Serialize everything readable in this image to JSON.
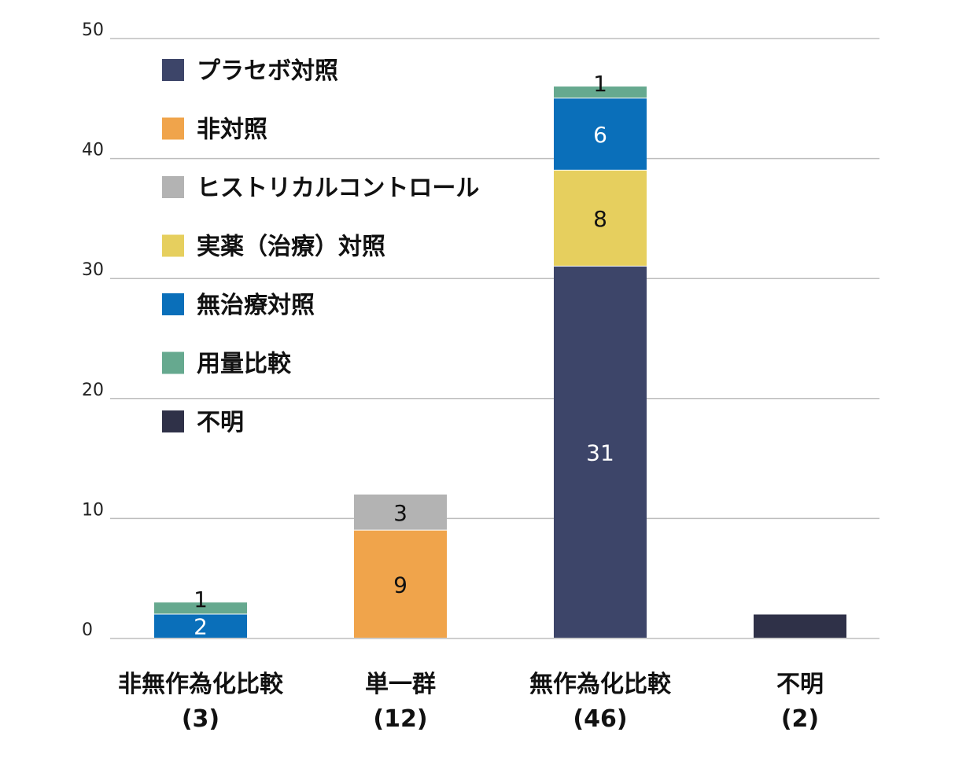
{
  "chart_data": {
    "type": "bar",
    "stacked": true,
    "categories": [
      "非無作為化比較",
      "単一群",
      "無作為化比較",
      "不明"
    ],
    "category_counts": [
      "(3)",
      "(12)",
      "(46)",
      "(2)"
    ],
    "series": [
      {
        "name": "プラセボ対照",
        "color": "#3d4569",
        "values": [
          0,
          0,
          31,
          0
        ],
        "labels": [
          "",
          "",
          "31",
          ""
        ],
        "label_color": "#ffffff"
      },
      {
        "name": "非対照",
        "color": "#f0a44b",
        "values": [
          0,
          9,
          0,
          0
        ],
        "labels": [
          "",
          "9",
          "",
          ""
        ],
        "label_color": "#111111"
      },
      {
        "name": "ヒストリカルコントロール",
        "color": "#b3b3b3",
        "values": [
          0,
          3,
          0,
          0
        ],
        "labels": [
          "",
          "3",
          "",
          ""
        ],
        "label_color": "#111111"
      },
      {
        "name": "実薬（治療）対照",
        "color": "#e6cf5e",
        "values": [
          0,
          0,
          8,
          0
        ],
        "labels": [
          "",
          "",
          "8",
          ""
        ],
        "label_color": "#111111"
      },
      {
        "name": "無治療対照",
        "color": "#0a6fba",
        "values": [
          2,
          0,
          6,
          0
        ],
        "labels": [
          "2",
          "",
          "6",
          ""
        ],
        "label_color": "#ffffff"
      },
      {
        "name": "用量比較",
        "color": "#66a98f",
        "values": [
          1,
          0,
          1,
          0
        ],
        "labels": [
          "1",
          "",
          "1",
          ""
        ],
        "label_color": "#111111"
      },
      {
        "name": "不明",
        "color": "#2f3148",
        "values": [
          0,
          0,
          0,
          2
        ],
        "labels": [
          "",
          "",
          "",
          ""
        ],
        "label_color": "#ffffff"
      }
    ],
    "ylim": [
      0,
      50
    ],
    "yticks": [
      "0",
      "10",
      "20",
      "30",
      "40",
      "50"
    ],
    "grid": true,
    "legend_position": "top-left"
  }
}
